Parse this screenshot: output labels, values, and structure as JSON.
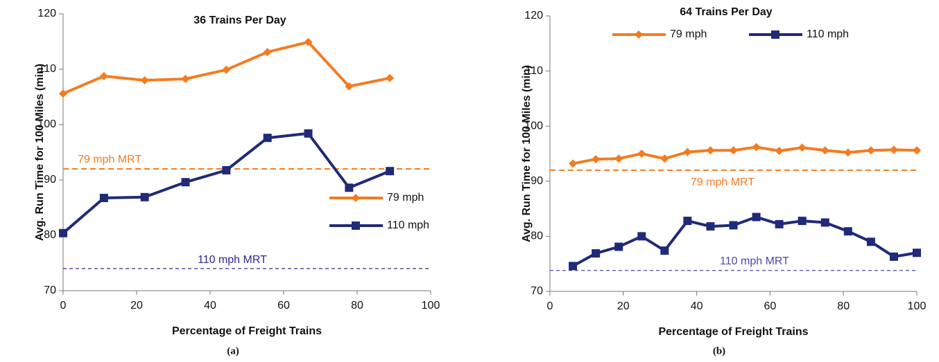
{
  "chart_data": [
    {
      "type": "line",
      "title": "36 Trains Per Day",
      "xlabel": "Percentage of Freight Trains",
      "ylabel": "Avg. Run Time for 100 Miles (min)",
      "caption": "(a)",
      "x": [
        0,
        11.1,
        22.2,
        33.3,
        44.4,
        55.6,
        66.7,
        77.8,
        88.9
      ],
      "series": [
        {
          "name": "79 mph",
          "color": "#f47b20",
          "marker": "diamond",
          "values": [
            105.6,
            108.75,
            108,
            108.25,
            109.9,
            113.1,
            114.9,
            106.9,
            108.4
          ]
        },
        {
          "name": "110 mph",
          "color": "#1f2a78",
          "marker": "square",
          "values": [
            80.4,
            86.75,
            86.9,
            89.6,
            91.75,
            97.6,
            98.4,
            88.6,
            91.6
          ]
        }
      ],
      "hlines": [
        {
          "value": 92,
          "label": "79 mph MRT",
          "color": "#f47b20"
        },
        {
          "value": 74,
          "label": "110 mph MRT",
          "color": "#2a2a8a"
        }
      ],
      "xlim": [
        0,
        100
      ],
      "ylim": [
        70,
        120
      ],
      "xticks": [
        0,
        20,
        40,
        60,
        80,
        100
      ],
      "yticks": [
        70,
        80,
        90,
        100,
        110,
        120
      ],
      "legend": "right"
    },
    {
      "type": "line",
      "title": "64 Trains Per Day",
      "xlabel": "Percentage of Freight Trains",
      "ylabel": "Avg. Run Time for 100 Miles (min)",
      "caption": "(b)",
      "x": [
        6.25,
        12.5,
        18.75,
        25,
        31.25,
        37.5,
        43.75,
        50,
        56.25,
        62.5,
        68.75,
        75,
        81.25,
        87.5,
        93.75,
        100
      ],
      "series": [
        {
          "name": "79 mph",
          "color": "#f47b20",
          "marker": "diamond",
          "values": [
            93.2,
            94.0,
            94.1,
            95.0,
            94.1,
            95.3,
            95.6,
            95.6,
            96.2,
            95.5,
            96.1,
            95.6,
            95.2,
            95.6,
            95.7,
            95.6
          ]
        },
        {
          "name": "110 mph",
          "color": "#1f2a78",
          "marker": "square",
          "values": [
            74.6,
            76.9,
            78.1,
            80.0,
            77.4,
            82.8,
            81.8,
            82.0,
            83.5,
            82.2,
            82.8,
            82.5,
            80.9,
            79.0,
            76.3,
            77.0
          ]
        }
      ],
      "hlines": [
        {
          "value": 92,
          "label": "79 mph MRT",
          "color": "#f47b20"
        },
        {
          "value": 73.8,
          "label": "110 mph MRT",
          "color": "#4a4aaa"
        }
      ],
      "xlim": [
        0,
        100
      ],
      "ylim": [
        70,
        120
      ],
      "xticks": [
        0,
        20,
        40,
        60,
        80,
        100
      ],
      "yticks": [
        70,
        80,
        90,
        100,
        110,
        120
      ],
      "legend": "top"
    }
  ]
}
